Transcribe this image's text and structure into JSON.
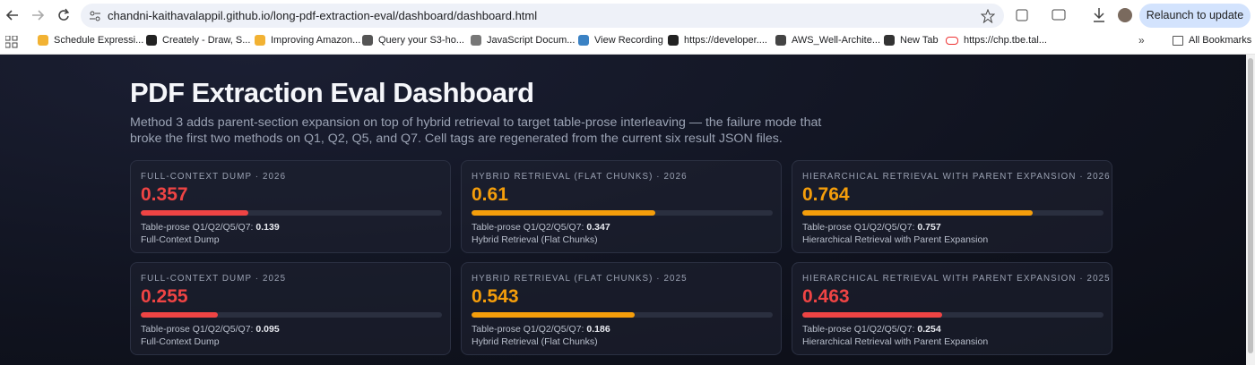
{
  "browser": {
    "url": "chandni-kaithavalappil.github.io/long-pdf-extraction-eval/dashboard/dashboard.html",
    "relaunch": "Relaunch to update",
    "bookmarks": [
      "Schedule Expressi...",
      "Creately - Draw, S...",
      "Improving Amazon...",
      "Query your S3-ho...",
      "JavaScript Docum...",
      "View Recording",
      "https://developer....",
      "AWS_Well-Archite...",
      "New Tab",
      "https://chp.tbe.tal..."
    ],
    "all_bookmarks": "All Bookmarks"
  },
  "dashboard": {
    "title": "PDF Extraction Eval Dashboard",
    "description": "Method 3 adds parent-section expansion on top of hybrid retrieval to target table-prose interleaving — the failure mode that broke the first two methods on Q1, Q2, Q5, and Q7. Cell tags are regenerated from the current six result JSON files.",
    "cards": [
      {
        "label": "FULL-CONTEXT DUMP · 2026",
        "score": 0.357,
        "color": "#ef4444",
        "tp_label": "Table-prose Q1/Q2/Q5/Q7:",
        "tp_value": 0.139,
        "method": "Full-Context Dump"
      },
      {
        "label": "HYBRID RETRIEVAL (FLAT CHUNKS) · 2026",
        "score": 0.61,
        "color": "#f59e0b",
        "tp_label": "Table-prose Q1/Q2/Q5/Q7:",
        "tp_value": 0.347,
        "method": "Hybrid Retrieval (Flat Chunks)"
      },
      {
        "label": "HIERARCHICAL RETRIEVAL WITH PARENT EXPANSION · 2026",
        "score": 0.764,
        "color": "#f59e0b",
        "tp_label": "Table-prose Q1/Q2/Q5/Q7:",
        "tp_value": 0.757,
        "method": "Hierarchical Retrieval with Parent Expansion"
      },
      {
        "label": "FULL-CONTEXT DUMP · 2025",
        "score": 0.255,
        "color": "#ef4444",
        "tp_label": "Table-prose Q1/Q2/Q5/Q7:",
        "tp_value": 0.095,
        "method": "Full-Context Dump"
      },
      {
        "label": "HYBRID RETRIEVAL (FLAT CHUNKS) · 2025",
        "score": 0.543,
        "color": "#f59e0b",
        "tp_label": "Table-prose Q1/Q2/Q5/Q7:",
        "tp_value": 0.186,
        "method": "Hybrid Retrieval (Flat Chunks)"
      },
      {
        "label": "HIERARCHICAL RETRIEVAL WITH PARENT EXPANSION · 2025",
        "score": 0.463,
        "color": "#ef4444",
        "tp_label": "Table-prose Q1/Q2/Q5/Q7:",
        "tp_value": 0.254,
        "method": "Hierarchical Retrieval with Parent Expansion"
      }
    ]
  }
}
